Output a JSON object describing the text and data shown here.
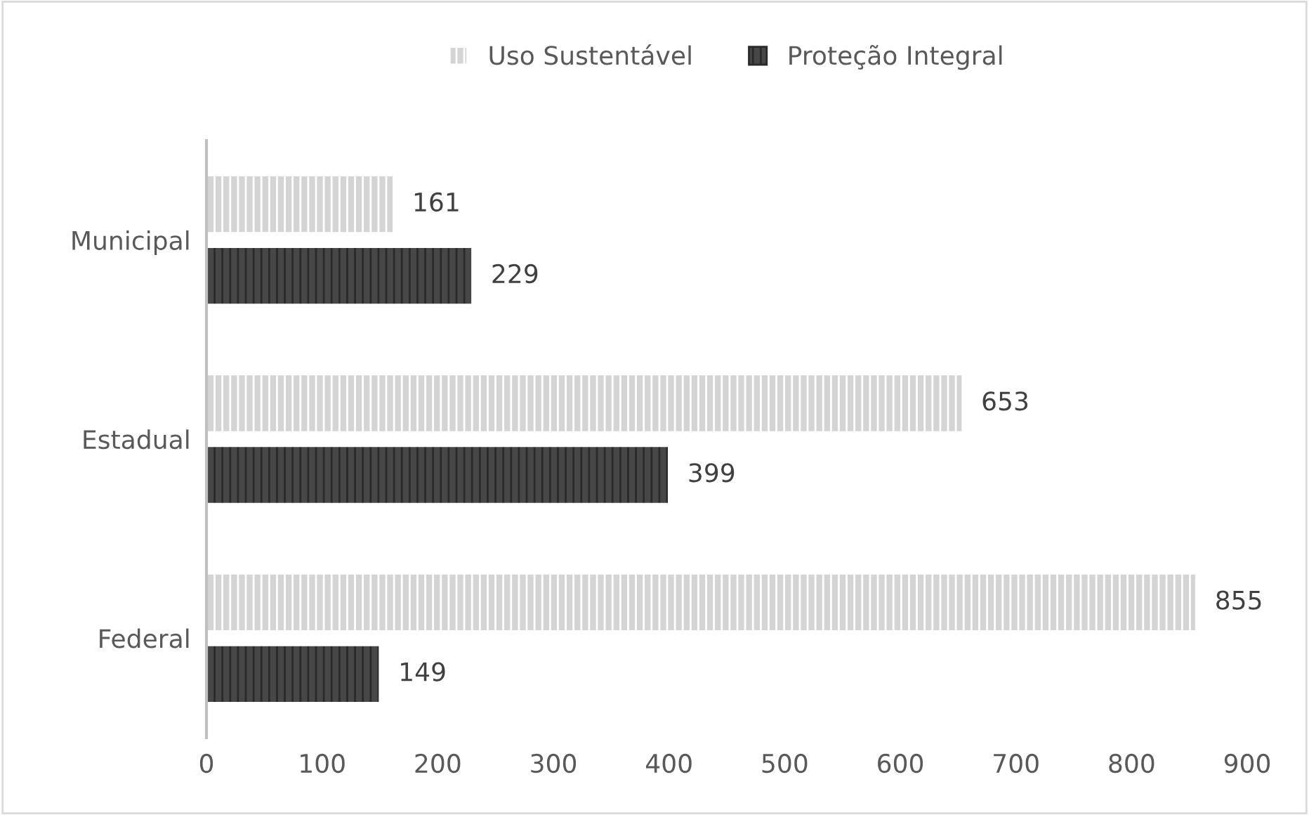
{
  "chart_data": {
    "type": "bar",
    "orientation": "horizontal",
    "categories": [
      "Municipal",
      "Estadual",
      "Federal"
    ],
    "series": [
      {
        "name": "Uso Sustentável",
        "color": "#d4d4d4",
        "values": [
          161,
          653,
          855
        ]
      },
      {
        "name": "Proteção Integral",
        "color": "#474747",
        "values": [
          229,
          399,
          149
        ]
      }
    ],
    "xlim": [
      0,
      900
    ],
    "xticks": [
      0,
      100,
      200,
      300,
      400,
      500,
      600,
      700,
      800,
      900
    ],
    "data_labels": true,
    "grid": false,
    "legend": "top"
  }
}
